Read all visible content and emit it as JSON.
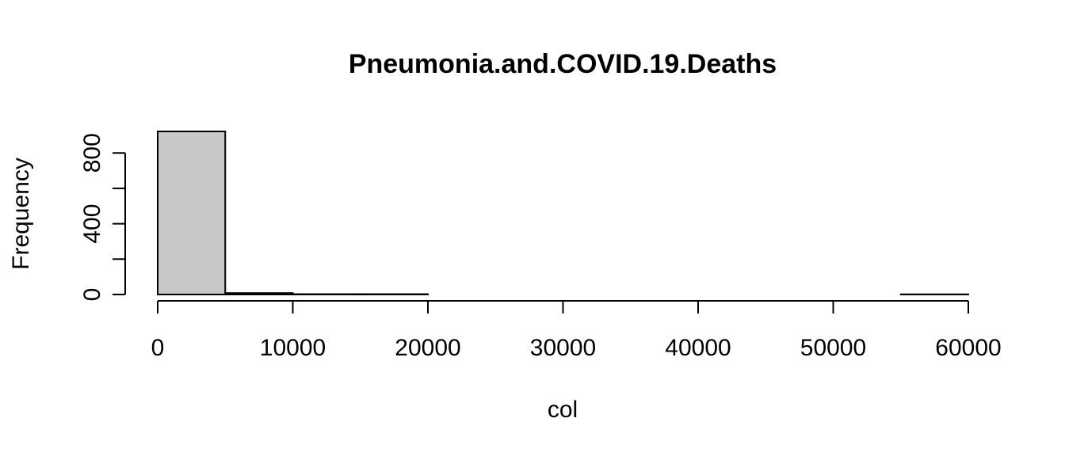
{
  "chart_data": {
    "type": "bar",
    "title": "Pneumonia.and.COVID.19.Deaths",
    "xlabel": "col",
    "ylabel": "Frequency",
    "bin_edges": [
      0,
      5000,
      10000,
      15000,
      20000,
      25000,
      30000,
      35000,
      40000,
      45000,
      50000,
      55000,
      60000
    ],
    "values": [
      922,
      8,
      2,
      2,
      0,
      0,
      0,
      0,
      0,
      0,
      0,
      1
    ],
    "xlim": [
      0,
      60000
    ],
    "ylim": [
      0,
      922
    ],
    "x_ticks": [
      0,
      10000,
      20000,
      30000,
      40000,
      50000,
      60000
    ],
    "y_ticks": [
      0,
      200,
      400,
      600,
      800
    ],
    "y_tick_labels": [
      "0",
      "",
      "400",
      "",
      "800"
    ],
    "bar_fill": "#c8c8c8",
    "bar_stroke": "#000000",
    "grid": false,
    "legend": "none"
  }
}
